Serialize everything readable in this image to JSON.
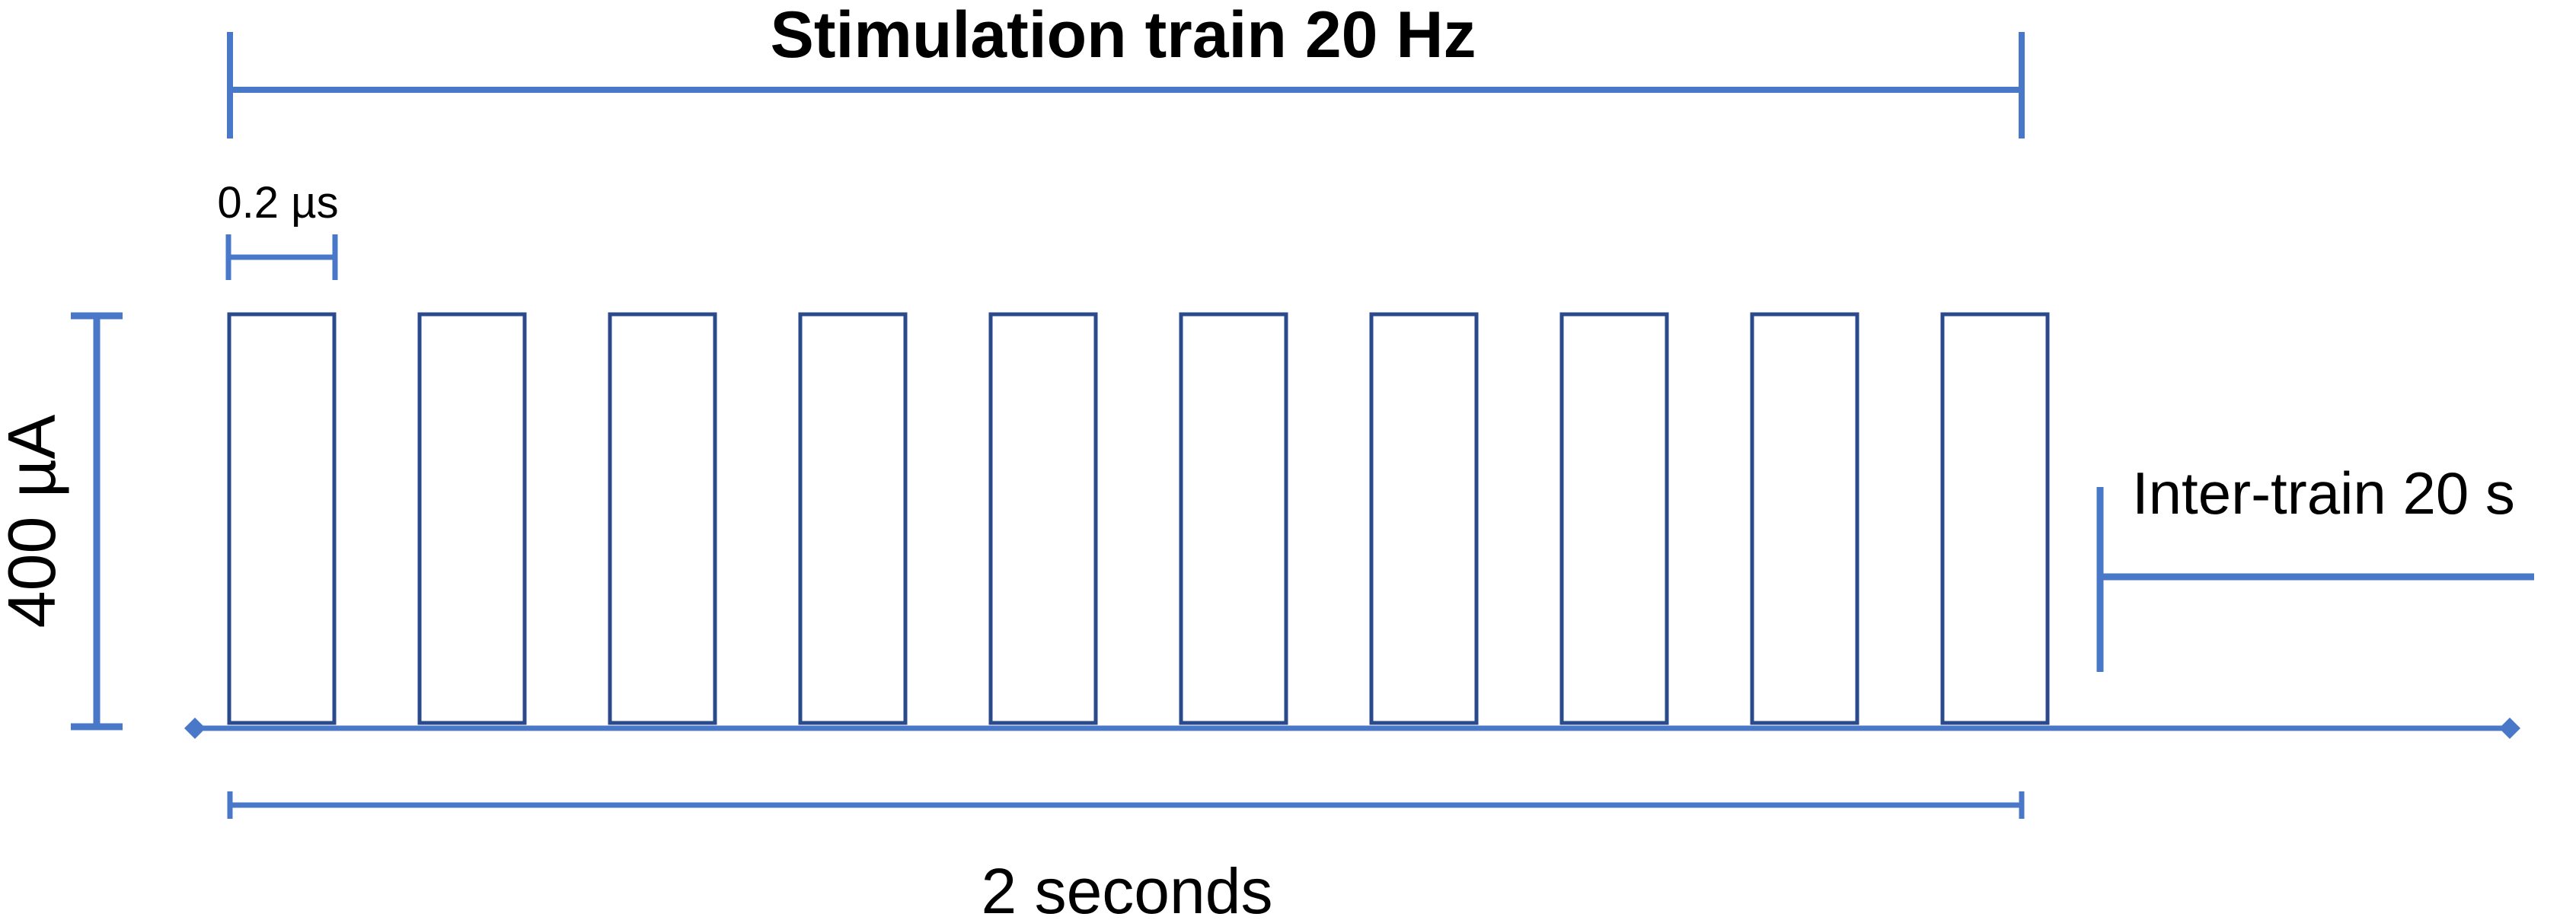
{
  "diagram": {
    "title": "Stimulation train 20 Hz",
    "pulse_width_label": "0.2 µs",
    "amplitude_label": "400 µA",
    "inter_train_label": "Inter-train 20 s",
    "train_duration_label": "2 seconds",
    "pulse_count": 10,
    "colors": {
      "bracket": "#4a78c8",
      "pulse_outline": "#2b4a8c",
      "baseline": "#4a78c8",
      "text": "#000000"
    }
  }
}
